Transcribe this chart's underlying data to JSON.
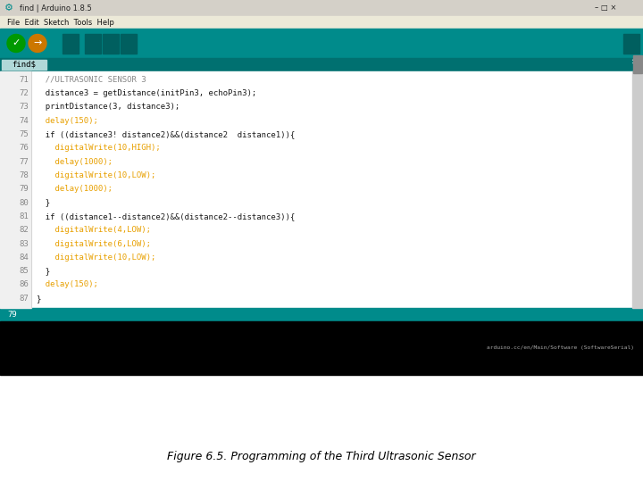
{
  "title": "Figure 6.5. Programming of the Third Ultrasonic Sensor",
  "title_fontsize": 9,
  "bg_color": "#ffffff",
  "toolbar_color": "#008B8B",
  "tab_color": "#007070",
  "tab_active_color": "#b0d8d8",
  "editor_bg": "#ffffff",
  "gutter_bg": "#f0f0f0",
  "line_number_color": "#888888",
  "code_lines": [
    {
      "num": "71",
      "text": "  //ULTRASONIC SENSOR 3",
      "color": "#888888"
    },
    {
      "num": "72",
      "text": "  distance3 = getDistance(initPin3, echoPin3);",
      "color": "#1a1a1a"
    },
    {
      "num": "73",
      "text": "  printDistance(3, distance3);",
      "color": "#1a1a1a"
    },
    {
      "num": "74",
      "text": "  delay(150);",
      "color": "#e8a000"
    },
    {
      "num": "75",
      "text": "  if ((distance3! distance2)&&(distance2  distance1)){",
      "color": "#1a1a1a"
    },
    {
      "num": "76",
      "text": "    digitalWrite(10,HIGH);",
      "color": "#e8a000"
    },
    {
      "num": "77",
      "text": "    delay(1000);",
      "color": "#e8a000"
    },
    {
      "num": "78",
      "text": "    digitalWrite(10,LOW);",
      "color": "#e8a000"
    },
    {
      "num": "79",
      "text": "    delay(1000);",
      "color": "#e8a000"
    },
    {
      "num": "80",
      "text": "  }",
      "color": "#1a1a1a"
    },
    {
      "num": "81",
      "text": "  if ((distance1--distance2)&&(distance2--distance3)){",
      "color": "#1a1a1a"
    },
    {
      "num": "82",
      "text": "    digitalWrite(4,LOW);",
      "color": "#e8a000"
    },
    {
      "num": "83",
      "text": "    digitalWrite(6,LOW);",
      "color": "#e8a000"
    },
    {
      "num": "84",
      "text": "    digitalWrite(10,LOW);",
      "color": "#e8a000"
    },
    {
      "num": "85",
      "text": "  }",
      "color": "#1a1a1a"
    },
    {
      "num": "86",
      "text": "  delay(150);",
      "color": "#e8a000"
    },
    {
      "num": "87",
      "text": "}",
      "color": "#1a1a1a"
    }
  ],
  "bottom_teal_color": "#008B8B",
  "status_bar_color": "#000000",
  "scrollbar_color": "#b0b0b0",
  "window_title": "find | Arduino 1.8.5",
  "menu_items": "File  Edit  Sketch  Tools  Help",
  "tab_label": "find$",
  "title_bar_bg": "#d4d0c8",
  "menu_bar_bg": "#ece9d8",
  "win_btn_text": "– □ ×",
  "status_text": "arduino.cc/en/Main/Software (SoftwareSerial)",
  "line_indicator": "79"
}
